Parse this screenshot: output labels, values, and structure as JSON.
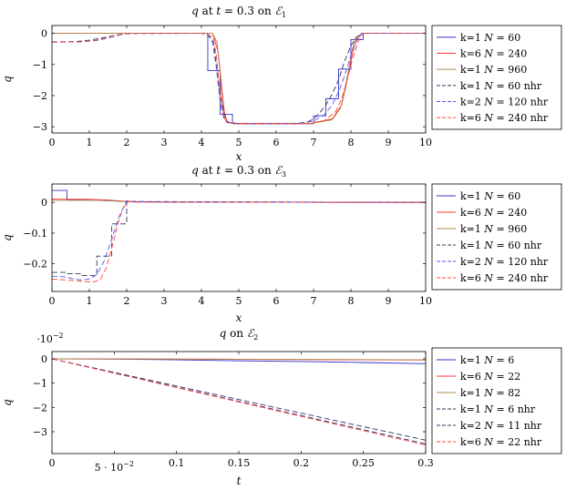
{
  "chart_data": [
    {
      "type": "line",
      "title": "q at t = 0.3 on E1",
      "xlabel": "x",
      "ylabel": "q",
      "xlim": [
        0,
        10
      ],
      "ylim": [
        -3.2,
        0.25
      ],
      "xticks": [
        0,
        1,
        2,
        3,
        4,
        5,
        6,
        7,
        8,
        9,
        10
      ],
      "yticks": [
        0,
        -1,
        -2,
        -3
      ],
      "ytick_labels": [
        "0",
        "−1",
        "−2",
        "−3"
      ],
      "xtick_labels": [
        "0",
        "1",
        "2",
        "3",
        "4",
        "5",
        "6",
        "7",
        "8",
        "9",
        "10"
      ],
      "legend_position": "right",
      "series": [
        {
          "name": "k=1 N = 60",
          "color": "#3333cc",
          "dash": "solid",
          "x": [
            0,
            4.17,
            4.17,
            4.5,
            4.5,
            4.83,
            4.83,
            7.0,
            7.0,
            7.33,
            7.33,
            7.67,
            7.67,
            8.0,
            8.0,
            8.33,
            8.33,
            10
          ],
          "y": [
            0,
            0,
            -1.2,
            -1.2,
            -2.6,
            -2.6,
            -2.9,
            -2.9,
            -2.65,
            -2.65,
            -2.1,
            -2.1,
            -1.15,
            -1.15,
            -0.2,
            -0.2,
            0,
            0
          ]
        },
        {
          "name": "k=6 N = 240",
          "color": "#ff3333",
          "dash": "solid",
          "x": [
            0,
            4.3,
            4.45,
            4.55,
            4.62,
            4.7,
            5.0,
            6.9,
            7.5,
            7.75,
            7.85,
            7.95,
            8.05,
            8.15,
            8.3,
            10
          ],
          "y": [
            0,
            0,
            -0.6,
            -1.8,
            -2.6,
            -2.85,
            -2.9,
            -2.9,
            -2.75,
            -2.3,
            -1.8,
            -1.2,
            -0.6,
            -0.2,
            0,
            0
          ]
        },
        {
          "name": "k=1 N = 960",
          "color": "#b08850",
          "dash": "solid",
          "x": [
            0,
            4.3,
            4.42,
            4.5,
            4.56,
            4.62,
            4.7,
            5.0,
            6.9,
            7.5,
            7.72,
            7.82,
            7.92,
            8.02,
            8.12,
            8.3,
            10
          ],
          "y": [
            0,
            0,
            -0.3,
            -1.3,
            -2.3,
            -2.75,
            -2.87,
            -2.9,
            -2.9,
            -2.78,
            -2.4,
            -1.9,
            -1.3,
            -0.6,
            -0.15,
            0,
            0
          ]
        },
        {
          "name": "k=1 N = 60 nhr",
          "color": "#333366",
          "dash": "6,3",
          "x": [
            0,
            0.33,
            0.67,
            1.0,
            1.33,
            1.67,
            2.0,
            4.0,
            4.17,
            4.17,
            4.33,
            4.33,
            4.5,
            4.5,
            4.67,
            4.67,
            5.0,
            6.5,
            6.83,
            7.0,
            7.17,
            7.33,
            7.5,
            7.67,
            7.83,
            8.0,
            8.17,
            8.33,
            10
          ],
          "y": [
            -0.27,
            -0.27,
            -0.26,
            -0.22,
            -0.15,
            -0.07,
            -0.01,
            0,
            -0.05,
            -0.05,
            -0.3,
            -0.3,
            -2.0,
            -2.0,
            -2.85,
            -2.85,
            -2.9,
            -2.9,
            -2.85,
            -2.75,
            -2.55,
            -2.3,
            -1.95,
            -1.5,
            -0.9,
            -0.4,
            -0.1,
            0,
            0
          ]
        },
        {
          "name": "k=2 N = 120 nhr",
          "color": "#5555ee",
          "dash": "6,3",
          "x": [
            0,
            0.4,
            0.8,
            1.2,
            1.5,
            1.8,
            2.05,
            4.0,
            4.2,
            4.3,
            4.4,
            4.5,
            4.6,
            4.8,
            6.5,
            7.0,
            7.3,
            7.5,
            7.7,
            7.85,
            8.0,
            8.15,
            8.3,
            10
          ],
          "y": [
            -0.28,
            -0.28,
            -0.27,
            -0.23,
            -0.15,
            -0.06,
            0,
            0,
            -0.05,
            -0.3,
            -1.1,
            -2.2,
            -2.75,
            -2.9,
            -2.9,
            -2.82,
            -2.6,
            -2.3,
            -1.8,
            -1.3,
            -0.7,
            -0.25,
            0,
            0
          ]
        },
        {
          "name": "k=6 N = 240 nhr",
          "color": "#ff4444",
          "dash": "6,3",
          "x": [
            0,
            0.4,
            0.8,
            1.1,
            1.4,
            1.7,
            2.0,
            4.0,
            4.3,
            4.4,
            4.5,
            4.6,
            4.7,
            5.0,
            6.8,
            7.3,
            7.6,
            7.75,
            7.9,
            8.05,
            8.2,
            8.35,
            10
          ],
          "y": [
            -0.28,
            -0.28,
            -0.27,
            -0.24,
            -0.16,
            -0.06,
            0,
            0,
            -0.1,
            -0.7,
            -2.0,
            -2.7,
            -2.88,
            -2.9,
            -2.9,
            -2.8,
            -2.5,
            -2.1,
            -1.5,
            -0.8,
            -0.25,
            0,
            0
          ]
        }
      ]
    },
    {
      "type": "line",
      "title": "q at t = 0.3 on E3",
      "xlabel": "x",
      "ylabel": "q",
      "xlim": [
        0,
        10
      ],
      "ylim": [
        -0.29,
        0.06
      ],
      "xticks": [
        0,
        1,
        2,
        3,
        4,
        5,
        6,
        7,
        8,
        9,
        10
      ],
      "yticks": [
        0,
        -0.1,
        -0.2
      ],
      "ytick_labels": [
        "0",
        "−0.1",
        "−0.2"
      ],
      "xtick_labels": [
        "0",
        "1",
        "2",
        "3",
        "4",
        "5",
        "6",
        "7",
        "8",
        "9",
        "10"
      ],
      "legend_position": "right",
      "series": [
        {
          "name": "k=1 N = 60",
          "color": "#3333cc",
          "dash": "solid",
          "x": [
            0,
            0.4,
            0.4,
            1.0,
            2.0,
            3.0,
            10
          ],
          "y": [
            0.039,
            0.039,
            0.009,
            0.008,
            0.003,
            0.001,
            0
          ]
        },
        {
          "name": "k=6 N = 240",
          "color": "#ff3333",
          "dash": "solid",
          "x": [
            0,
            0.1,
            1.0,
            1.5,
            2.0,
            3.0,
            10
          ],
          "y": [
            0.012,
            0.011,
            0.01,
            0.008,
            0.003,
            0.001,
            0
          ]
        },
        {
          "name": "k=1 N = 960",
          "color": "#b08850",
          "dash": "solid",
          "x": [
            0,
            0.1,
            1.0,
            1.5,
            2.0,
            3.0,
            10
          ],
          "y": [
            0.007,
            0.007,
            0.007,
            0.006,
            0.002,
            0.001,
            0
          ]
        },
        {
          "name": "k=1 N = 60 nhr",
          "color": "#333366",
          "dash": "6,3",
          "x": [
            0,
            0.4,
            0.4,
            0.8,
            0.8,
            1.2,
            1.2,
            1.6,
            1.6,
            2.0,
            2.0,
            10
          ],
          "y": [
            -0.228,
            -0.228,
            -0.232,
            -0.232,
            -0.238,
            -0.238,
            -0.175,
            -0.175,
            -0.07,
            -0.07,
            0.003,
            0
          ]
        },
        {
          "name": "k=2 N = 120 nhr",
          "color": "#5555ee",
          "dash": "6,3",
          "x": [
            0,
            0.2,
            0.4,
            0.6,
            0.8,
            1.0,
            1.2,
            1.4,
            1.6,
            1.8,
            2.0,
            2.2,
            10
          ],
          "y": [
            -0.24,
            -0.241,
            -0.244,
            -0.25,
            -0.252,
            -0.25,
            -0.235,
            -0.19,
            -0.12,
            -0.045,
            0.005,
            0.002,
            0
          ]
        },
        {
          "name": "k=6 N = 240 nhr",
          "color": "#ff4444",
          "dash": "6,3",
          "x": [
            0,
            0.3,
            0.6,
            0.9,
            1.1,
            1.3,
            1.45,
            1.6,
            1.75,
            1.9,
            2.05,
            2.2,
            10
          ],
          "y": [
            -0.25,
            -0.252,
            -0.255,
            -0.258,
            -0.26,
            -0.25,
            -0.215,
            -0.15,
            -0.075,
            -0.02,
            0.004,
            0.001,
            0
          ]
        }
      ]
    },
    {
      "type": "line",
      "title": "q on E2",
      "xlabel": "t",
      "ylabel": "q",
      "scale_note": "·10−2",
      "xlim": [
        0,
        0.3
      ],
      "ylim": [
        -3.9,
        0.3
      ],
      "xticks": [
        0,
        0.05,
        0.1,
        0.15,
        0.2,
        0.25,
        0.3
      ],
      "xtick_labels": [
        "0",
        "5 · 10−2",
        "0.1",
        "0.15",
        "0.2",
        "0.25",
        "0.3"
      ],
      "yticks": [
        0,
        -1,
        -2,
        -3
      ],
      "ytick_labels": [
        "0",
        "−1",
        "−2",
        "−3"
      ],
      "legend_position": "right",
      "series": [
        {
          "name": "k=1 N = 6",
          "color": "#3333cc",
          "dash": "solid",
          "x": [
            0,
            0.05,
            0.1,
            0.15,
            0.2,
            0.25,
            0.3
          ],
          "y": [
            0,
            -0.01,
            -0.04,
            -0.08,
            -0.11,
            -0.15,
            -0.2
          ]
        },
        {
          "name": "k=6 N = 22",
          "color": "#ff3333",
          "dash": "solid",
          "x": [
            0,
            0.05,
            0.1,
            0.15,
            0.2,
            0.25,
            0.3
          ],
          "y": [
            0,
            -0.005,
            -0.01,
            -0.02,
            -0.03,
            -0.04,
            -0.05
          ]
        },
        {
          "name": "k=1 N = 82",
          "color": "#b08850",
          "dash": "solid",
          "x": [
            0,
            0.05,
            0.1,
            0.15,
            0.2,
            0.25,
            0.3
          ],
          "y": [
            0,
            -0.003,
            -0.008,
            -0.015,
            -0.022,
            -0.03,
            -0.04
          ]
        },
        {
          "name": "k=1 N = 6 nhr",
          "color": "#333366",
          "dash": "6,3",
          "x": [
            0,
            0.3
          ],
          "y": [
            0,
            -3.35
          ]
        },
        {
          "name": "k=2 N = 11 nhr",
          "color": "#333366",
          "dash": "6,3",
          "x": [
            0,
            0.3
          ],
          "y": [
            0,
            -3.5
          ]
        },
        {
          "name": "k=6 N = 22 nhr",
          "color": "#ff4444",
          "dash": "6,3",
          "x": [
            0,
            0.3
          ],
          "y": [
            0,
            -3.55
          ]
        }
      ]
    }
  ]
}
